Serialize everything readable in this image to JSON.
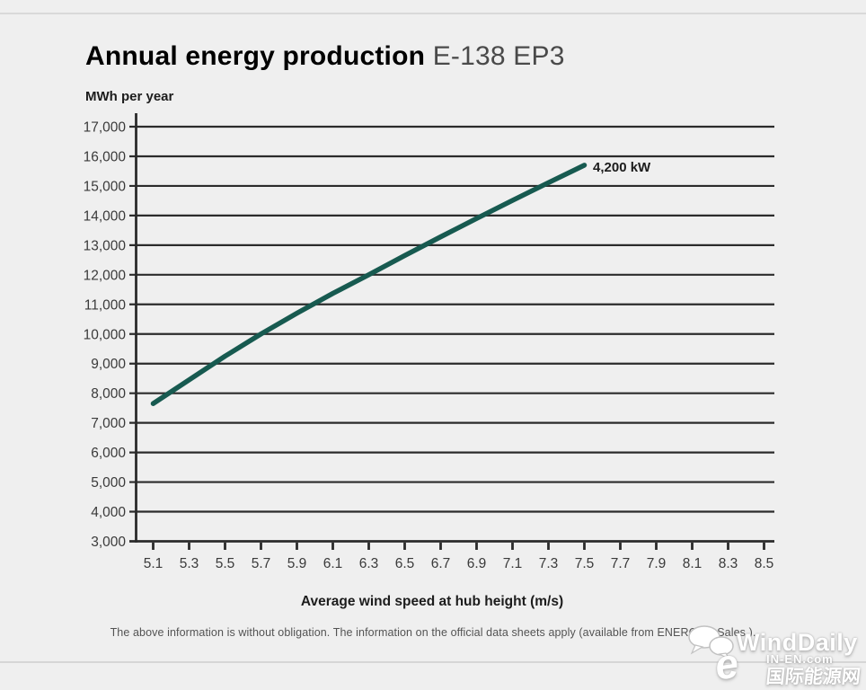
{
  "header": {
    "title_main": "Annual energy production",
    "title_variant": "E-138 EP3"
  },
  "chart": {
    "unit_label": "MWh per year",
    "x_axis_title": "Average wind speed at hub height (m/s)",
    "series_label": "4,200 kW"
  },
  "chart_data": {
    "type": "line",
    "title": "Annual energy production E-138 EP3",
    "xlabel": "Average wind speed at hub height (m/s)",
    "ylabel": "MWh per year",
    "xlim": [
      5.0,
      8.56
    ],
    "ylim": [
      3000,
      17000
    ],
    "grid": "horizontal",
    "grid_color": "#2b2b2b",
    "background_color": "#efefef",
    "x_ticks": [
      5.1,
      5.3,
      5.5,
      5.7,
      5.9,
      6.1,
      6.3,
      6.5,
      6.7,
      6.9,
      7.1,
      7.3,
      7.5,
      7.7,
      7.9,
      8.1,
      8.3,
      8.5
    ],
    "x_tick_labels": [
      "5.1",
      "5.3",
      "5.5",
      "5.7",
      "5.9",
      "6.1",
      "6.3",
      "6.5",
      "6.7",
      "6.9",
      "7.1",
      "7.3",
      "7.5",
      "7.7",
      "7.9",
      "8.1",
      "8.3",
      "8.5"
    ],
    "y_ticks": [
      3000,
      4000,
      5000,
      6000,
      7000,
      8000,
      9000,
      10000,
      11000,
      12000,
      13000,
      14000,
      15000,
      16000,
      17000
    ],
    "y_tick_labels": [
      "3,000",
      "4,000",
      "5,000",
      "6,000",
      "7,000",
      "8,000",
      "9,000",
      "10,000",
      "11,000",
      "12,000",
      "13,000",
      "14,000",
      "15,000",
      "16,000",
      "17,000"
    ],
    "series": [
      {
        "name": "4,200 kW",
        "color": "#175a50",
        "x": [
          5.1,
          5.3,
          5.5,
          5.7,
          5.9,
          6.1,
          6.3,
          6.5,
          6.7,
          6.9,
          7.1,
          7.3,
          7.5
        ],
        "values": [
          7650,
          8450,
          9250,
          10000,
          10700,
          11370,
          12000,
          12650,
          13280,
          13900,
          14510,
          15110,
          15700
        ]
      }
    ],
    "annotations": [
      {
        "text": "4,200 kW",
        "at_x": 7.5,
        "at_y": 15700,
        "position": "right-of-line-end"
      }
    ],
    "legend_position": "none"
  },
  "footer": {
    "note": "The above information is without obligation. The information on the official data sheets apply (available from ENERCON Sales.)."
  },
  "watermark": {
    "brand": "WindDaily",
    "site": "IN-EN.com",
    "site_cn": "国际能源网"
  }
}
